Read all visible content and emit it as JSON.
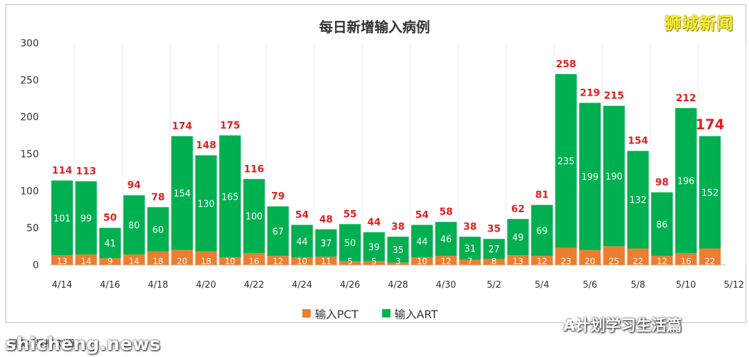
{
  "chart_data": {
    "type": "bar",
    "stacked": true,
    "title": "每日新增输入病例",
    "categories": [
      "4/14",
      "4/15",
      "4/16",
      "4/17",
      "4/18",
      "4/19",
      "4/20",
      "4/21",
      "4/22",
      "4/23",
      "4/24",
      "4/25",
      "4/26",
      "4/27",
      "4/28",
      "4/29",
      "4/30",
      "5/1",
      "5/2",
      "5/3",
      "5/4",
      "5/5",
      "5/6",
      "5/7",
      "5/8",
      "5/9",
      "5/10",
      "5/11"
    ],
    "tick_labels": [
      "4/14",
      "4/16",
      "4/18",
      "4/20",
      "4/22",
      "4/24",
      "4/26",
      "4/28",
      "4/30",
      "5/2",
      "5/4",
      "5/6",
      "5/8",
      "5/10",
      "5/12"
    ],
    "series": [
      {
        "name": "输入PCT",
        "color": "#ed7d31",
        "values": [
          13,
          14,
          9,
          14,
          18,
          20,
          18,
          10,
          16,
          12,
          10,
          11,
          5,
          5,
          3,
          10,
          12,
          7,
          8,
          13,
          12,
          23,
          20,
          25,
          22,
          12,
          16,
          22
        ]
      },
      {
        "name": "输入ART",
        "color": "#00b050",
        "values": [
          101,
          99,
          41,
          80,
          60,
          154,
          130,
          165,
          100,
          67,
          44,
          37,
          50,
          39,
          35,
          44,
          46,
          31,
          27,
          49,
          69,
          235,
          199,
          190,
          132,
          86,
          196,
          152
        ]
      }
    ],
    "totals": [
      114,
      113,
      50,
      94,
      78,
      174,
      148,
      175,
      116,
      79,
      54,
      48,
      55,
      44,
      38,
      54,
      58,
      38,
      35,
      62,
      81,
      258,
      219,
      215,
      154,
      98,
      212,
      174
    ],
    "total_label_color": "#e02020",
    "ylim": [
      0,
      300
    ],
    "yticks": [
      0,
      50,
      100,
      150,
      200,
      250,
      300
    ],
    "legend_position": "bottom",
    "grid": "vertical-light"
  },
  "brand": "狮城新闻",
  "wechat_account": "A计划学习生活篇",
  "caption": "图表：早报 刘珊",
  "watermark": "shicheng.news"
}
